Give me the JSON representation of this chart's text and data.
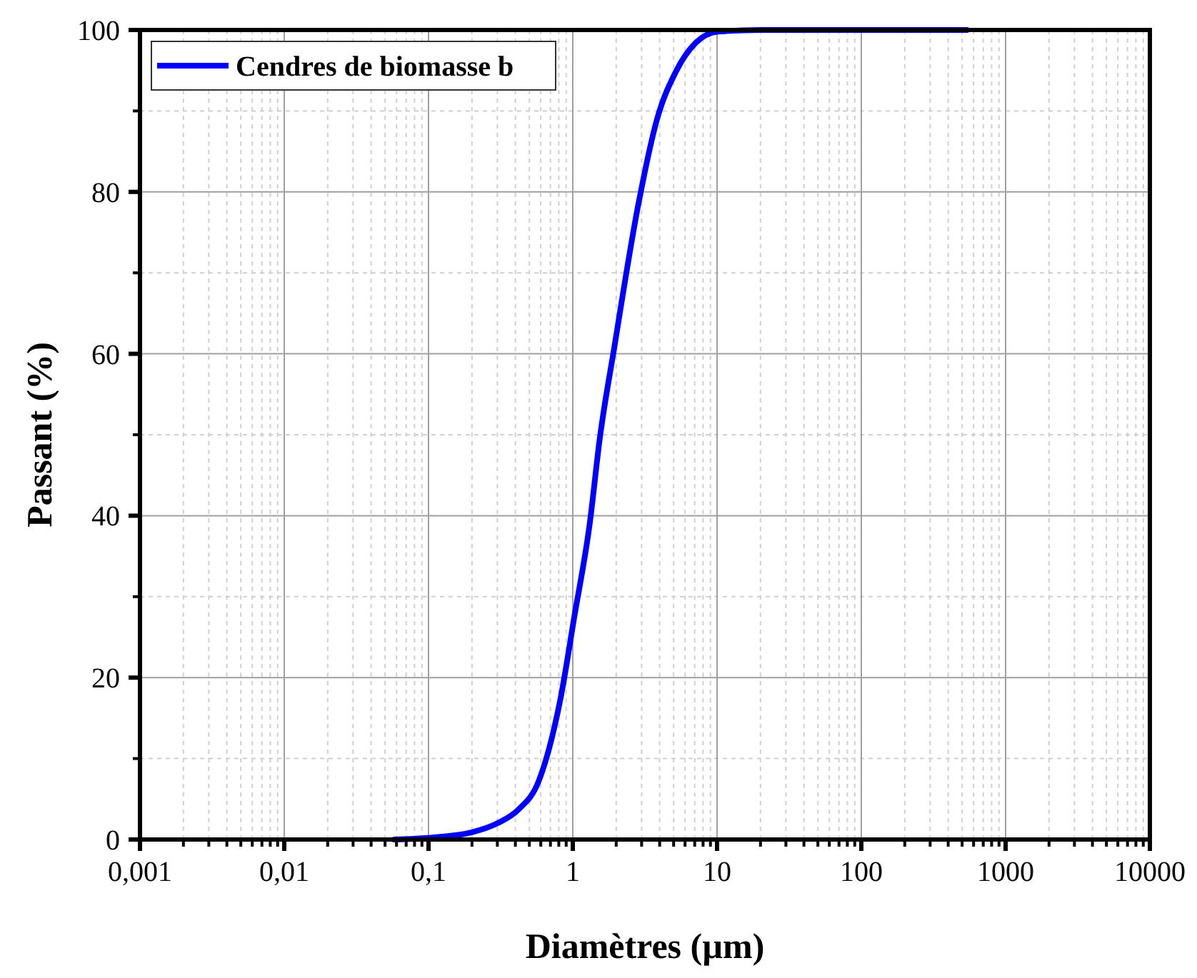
{
  "chart_data": {
    "type": "line",
    "xlabel": "Diamètres (µm)",
    "ylabel": "Passant (%)",
    "log": "x",
    "xlim": [
      0.001,
      10000
    ],
    "xticks": [
      {
        "value": 0.001,
        "label": "0,001"
      },
      {
        "value": 0.01,
        "label": "0,01"
      },
      {
        "value": 0.1,
        "label": "0,1"
      },
      1,
      10,
      100,
      1000,
      10000
    ],
    "ylim": [
      0,
      100
    ],
    "yticks": [
      0,
      20,
      40,
      60,
      80,
      100
    ],
    "grid": true,
    "legend": "top left",
    "line_style": "solid",
    "marker": "none",
    "series": [
      {
        "name": "Cendres de biomasse b",
        "color": "#0000ff",
        "x": [
          0.058,
          0.1,
          0.15,
          0.2,
          0.3,
          0.42,
          0.58,
          0.83,
          1.02,
          1.31,
          1.54,
          1.94,
          2.85,
          3.84,
          5.2,
          7.1,
          10.2,
          20,
          100,
          540
        ],
        "values": [
          0,
          0.2,
          0.5,
          0.9,
          2,
          3.7,
          7.2,
          17.8,
          27.3,
          39,
          49.6,
          60.8,
          78.5,
          89,
          94.9,
          98.4,
          99.8,
          100,
          100,
          100
        ]
      }
    ]
  }
}
